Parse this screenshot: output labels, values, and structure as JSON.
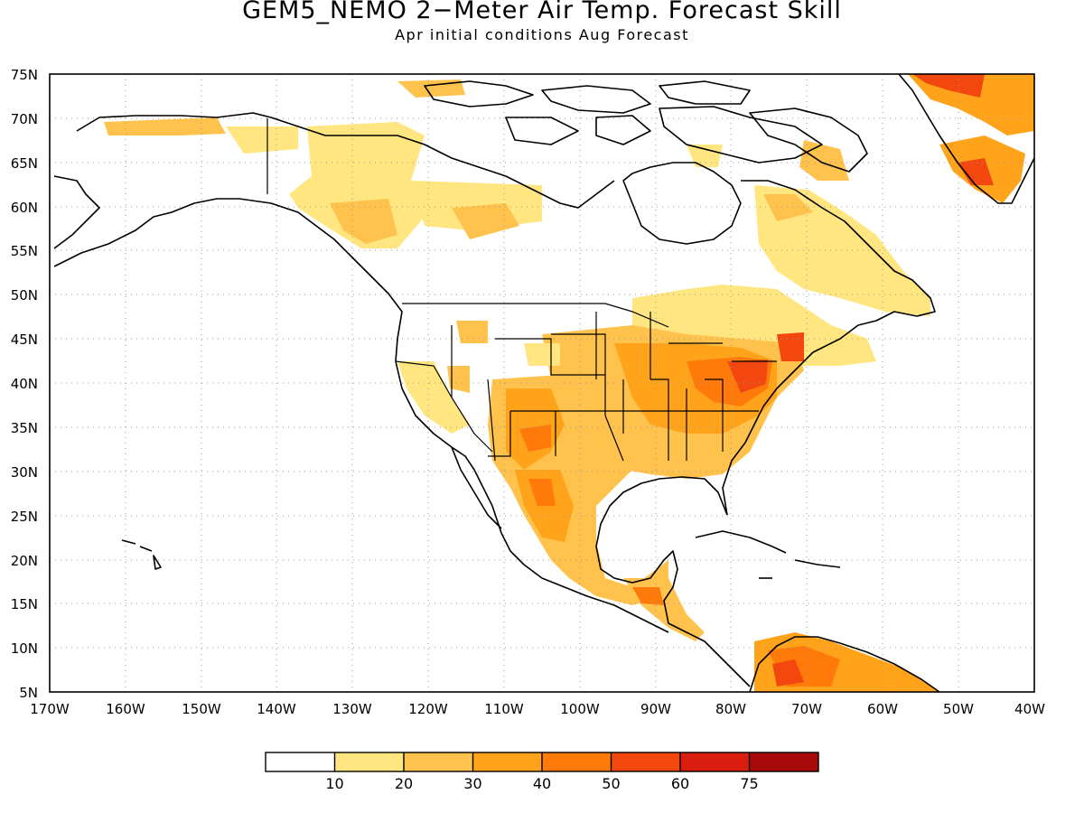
{
  "title": "GEM5_NEMO 2−Meter Air Temp. Forecast Skill",
  "subtitle": "Apr initial conditions  Aug Forecast",
  "map": {
    "lat_labels": [
      "75N",
      "70N",
      "65N",
      "60N",
      "55N",
      "50N",
      "45N",
      "40N",
      "35N",
      "30N",
      "25N",
      "20N",
      "15N",
      "10N",
      "5N"
    ],
    "lon_labels": [
      "170W",
      "160W",
      "150W",
      "140W",
      "130W",
      "120W",
      "110W",
      "100W",
      "90W",
      "80W",
      "70W",
      "60W",
      "50W",
      "40W"
    ],
    "lon_range": [
      -170,
      -40
    ],
    "lat_range": [
      5,
      75
    ],
    "grid": "dotted"
  },
  "colorbar": {
    "labels": [
      "10",
      "20",
      "30",
      "40",
      "50",
      "60",
      "75"
    ],
    "colors": [
      "#ffffff",
      "#ffe680",
      "#ffc34d",
      "#ffa31a",
      "#ff7a0a",
      "#f2470f",
      "#d91e0f",
      "#a80a0a"
    ]
  },
  "colors": {
    "coast": "#000000",
    "land_bg": "#ffffff"
  }
}
